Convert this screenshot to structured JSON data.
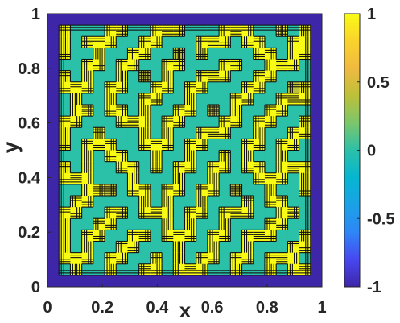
{
  "chart_data": {
    "type": "heatmap",
    "title": "",
    "xlabel": "x",
    "ylabel": "y",
    "xlim": [
      0,
      1
    ],
    "ylim": [
      0,
      1
    ],
    "x_ticks": [
      "0",
      "0.2",
      "0.4",
      "0.6",
      "0.8",
      "1"
    ],
    "y_ticks": [
      "0",
      "0.2",
      "0.4",
      "0.6",
      "0.8",
      "1"
    ],
    "colorbar": {
      "limits": [
        -1,
        1
      ],
      "ticks": [
        "1",
        "0.5",
        "0",
        "-0.5",
        "-1"
      ],
      "colormap": "parula"
    },
    "contours": true,
    "grid": [
      [
        -1,
        -1,
        -1,
        -1,
        -1,
        -1,
        -1,
        -1,
        -1,
        -1,
        -1,
        -1,
        -1,
        -1,
        -1,
        -1,
        -1,
        -1,
        -1,
        -1,
        -1,
        -1,
        -1,
        -1
      ],
      [
        -1,
        1,
        0,
        0,
        0,
        1,
        1,
        0,
        0,
        1,
        1,
        1,
        0,
        0,
        0,
        1,
        1,
        1,
        0,
        0,
        1,
        0,
        1,
        -1
      ],
      [
        -1,
        1,
        0,
        1,
        1,
        1,
        0,
        0,
        1,
        1,
        0,
        0,
        0,
        1,
        1,
        1,
        0,
        1,
        1,
        0,
        0,
        1,
        1,
        -1
      ],
      [
        -1,
        1,
        0,
        0,
        1,
        0,
        0,
        1,
        1,
        0,
        0,
        0.4,
        0,
        1,
        0,
        0,
        0,
        0,
        1,
        1,
        0,
        1,
        1,
        -1
      ],
      [
        -1,
        0,
        0,
        1,
        1,
        0,
        1,
        1,
        0,
        0,
        1,
        1,
        0,
        0,
        0,
        1,
        1,
        0,
        0,
        1,
        1,
        1,
        0,
        -1
      ],
      [
        -1,
        1,
        0,
        1,
        0,
        0,
        1,
        0,
        0.4,
        0,
        1,
        0,
        0,
        1,
        1,
        1,
        0,
        0,
        1,
        1,
        0,
        0,
        0,
        -1
      ],
      [
        -1,
        1,
        1,
        1,
        0,
        1,
        1,
        0,
        0,
        1,
        1,
        0,
        1,
        1,
        0,
        0,
        0,
        1,
        1,
        0,
        0,
        0.4,
        1,
        -1
      ],
      [
        -1,
        0,
        1,
        0,
        0,
        1,
        0,
        0,
        1,
        1,
        0,
        0,
        1,
        0,
        0,
        0,
        1,
        1,
        0,
        0,
        1,
        1,
        1,
        -1
      ],
      [
        -1,
        0,
        1,
        1,
        0,
        1,
        1,
        0,
        1,
        0,
        0,
        1,
        1,
        0,
        0.4,
        0,
        1,
        0,
        0,
        1,
        1,
        0,
        0,
        -1
      ],
      [
        -1,
        1,
        1,
        0,
        0,
        0,
        1,
        1,
        1,
        0,
        1,
        1,
        0,
        0,
        0,
        1,
        1,
        0,
        1,
        1,
        0,
        0,
        1,
        -1
      ],
      [
        -1,
        1,
        0,
        0,
        1,
        0,
        0,
        0,
        1,
        0,
        1,
        0,
        0,
        1,
        1,
        1,
        0,
        0,
        1,
        0,
        0,
        1,
        1,
        -1
      ],
      [
        -1,
        1,
        0,
        1,
        1,
        1,
        0,
        0,
        1,
        1,
        1,
        0,
        1,
        1,
        0,
        0,
        0,
        1,
        1,
        0,
        1,
        1,
        0,
        -1
      ],
      [
        -1,
        0,
        0,
        1,
        0,
        1,
        1,
        0,
        0,
        1,
        0,
        0,
        1,
        0,
        0,
        1,
        0,
        1,
        0,
        0,
        1,
        0,
        0,
        -1
      ],
      [
        -1,
        1,
        0,
        1,
        0,
        0,
        1,
        1,
        0,
        1,
        0,
        1,
        1,
        0,
        1,
        1,
        0,
        1,
        1,
        0,
        1,
        1,
        1,
        -1
      ],
      [
        -1,
        1,
        1,
        1,
        0,
        0,
        0,
        1,
        0,
        0,
        0,
        1,
        0,
        0,
        1,
        0,
        0,
        0,
        1,
        1,
        1,
        0,
        1,
        -1
      ],
      [
        -1,
        0,
        0,
        1,
        1,
        0.4,
        0,
        1,
        1,
        0,
        1,
        1,
        0,
        1,
        1,
        0,
        0.4,
        0,
        0,
        1,
        0,
        0,
        1,
        -1
      ],
      [
        -1,
        0,
        1,
        1,
        0,
        0,
        0,
        0,
        1,
        0,
        1,
        0,
        0,
        1,
        0,
        0,
        0,
        1,
        0,
        1,
        1,
        0,
        0,
        -1
      ],
      [
        -1,
        1,
        1,
        0,
        0,
        1,
        1,
        0,
        1,
        1,
        1,
        0,
        1,
        1,
        0,
        1,
        1,
        1,
        0,
        0,
        1,
        1,
        0,
        -1
      ],
      [
        -1,
        1,
        0,
        0,
        1,
        1,
        0,
        0,
        0,
        0,
        1,
        0,
        1,
        0,
        0,
        1,
        0,
        0,
        0,
        1,
        1,
        0,
        0,
        -1
      ],
      [
        -1,
        1,
        0,
        1,
        1,
        0,
        0,
        1,
        1,
        0,
        1,
        1,
        1,
        0,
        1,
        1,
        0,
        1,
        1,
        1,
        0,
        0,
        1,
        -1
      ],
      [
        -1,
        1,
        0,
        1,
        0,
        0,
        1,
        1,
        0,
        0,
        0,
        1,
        0,
        0,
        1,
        0,
        0,
        1,
        0,
        0,
        0,
        1,
        1,
        -1
      ],
      [
        -1,
        1,
        1,
        1,
        0,
        1,
        1,
        0,
        0,
        1,
        0,
        1,
        0,
        1,
        1,
        0,
        1,
        1,
        0,
        1,
        1,
        1,
        0,
        -1
      ],
      [
        -1,
        0,
        1,
        0,
        0,
        1,
        0,
        0,
        1,
        1,
        0,
        1,
        1,
        1,
        0,
        0,
        1,
        0,
        0,
        1,
        0,
        1,
        1,
        -1
      ],
      [
        -1,
        -1,
        -1,
        -1,
        -1,
        -1,
        -1,
        -1,
        -1,
        -1,
        -1,
        -1,
        -1,
        -1,
        -1,
        -1,
        -1,
        -1,
        -1,
        -1,
        -1,
        -1,
        -1,
        -1
      ]
    ]
  }
}
